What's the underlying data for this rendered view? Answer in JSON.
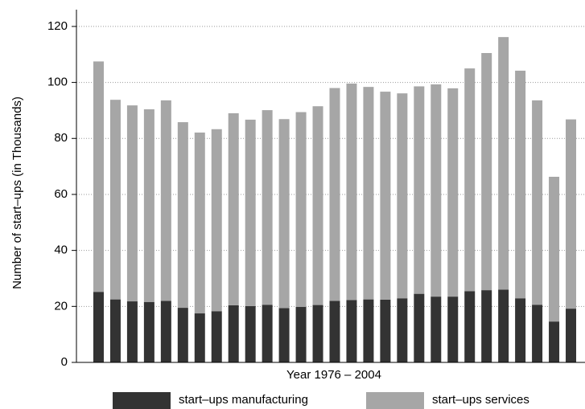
{
  "chart_data": {
    "type": "stacked_bar",
    "x_label": "Year 1976 – 2004",
    "y_label": "Number of start–ups (in Thousands)",
    "categories": [
      null,
      null,
      null,
      null,
      null,
      null,
      null,
      null,
      null,
      null,
      null,
      null,
      null,
      null,
      null,
      null,
      null,
      null,
      null,
      null,
      null,
      null,
      null,
      null,
      null,
      null,
      null,
      null,
      null
    ],
    "series": [
      {
        "name": "start–ups manufacturing",
        "color": "#333333",
        "values": [
          25.2,
          22.5,
          21.8,
          21.6,
          22.0,
          19.5,
          17.5,
          18.3,
          20.4,
          20.1,
          20.6,
          19.4,
          19.8,
          20.5,
          22.0,
          22.3,
          22.5,
          22.4,
          22.9,
          24.5,
          23.5,
          23.5,
          25.4,
          25.8,
          26.0,
          22.9,
          20.6,
          14.6,
          19.2
        ]
      },
      {
        "name": "start–ups services",
        "color": "#a6a6a6",
        "values": [
          82.3,
          71.3,
          70.0,
          68.8,
          71.6,
          66.3,
          64.6,
          65.0,
          68.6,
          66.6,
          69.5,
          67.5,
          69.6,
          71.0,
          76.0,
          77.3,
          75.9,
          74.3,
          73.2,
          74.1,
          75.8,
          74.4,
          79.6,
          84.7,
          90.2,
          81.3,
          73.0,
          51.7,
          67.6
        ]
      }
    ],
    "ylim": [
      0,
      126
    ],
    "yticks": [
      0,
      20,
      40,
      60,
      80,
      100,
      120
    ],
    "grid": true,
    "legend": "bottom"
  }
}
